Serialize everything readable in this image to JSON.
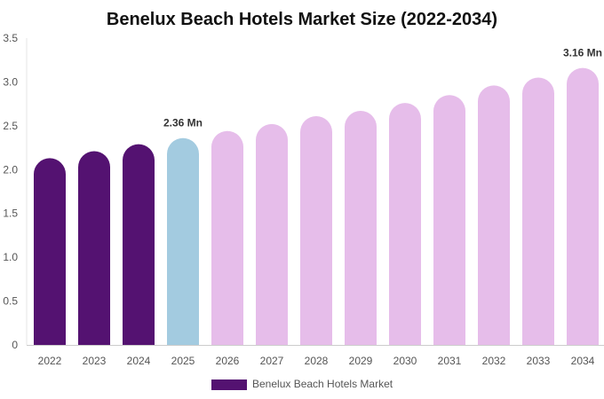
{
  "chart_data": {
    "type": "bar",
    "title": "Benelux Beach Hotels Market Size (2022-2034)",
    "xlabel": "",
    "ylabel": "",
    "categories": [
      "2022",
      "2023",
      "2024",
      "2025",
      "2026",
      "2027",
      "2028",
      "2029",
      "2030",
      "2031",
      "2032",
      "2033",
      "2034"
    ],
    "series": [
      {
        "name": "Benelux Beach Hotels Market",
        "values": [
          2.13,
          2.21,
          2.29,
          2.36,
          2.44,
          2.52,
          2.61,
          2.67,
          2.76,
          2.85,
          2.96,
          3.05,
          3.16
        ]
      }
    ],
    "ylim": [
      0,
      3.5
    ],
    "yticks": [
      {
        "value": 0,
        "label": "0"
      },
      {
        "value": 0.5,
        "label": "0.5"
      },
      {
        "value": 1.0,
        "label": "1.0"
      },
      {
        "value": 1.5,
        "label": "1.5"
      },
      {
        "value": 2.0,
        "label": "2.0"
      },
      {
        "value": 2.5,
        "label": "2.5"
      },
      {
        "value": 3.0,
        "label": "3.0"
      },
      {
        "value": 3.5,
        "label": "3.5"
      }
    ],
    "data_labels": [
      {
        "index": 3,
        "text": "2.36 Mn"
      },
      {
        "index": 12,
        "text": "3.16 Mn"
      }
    ],
    "colors": {
      "historical": "#541271",
      "current": "#a3cbe0",
      "forecast": "#e6bdea"
    },
    "color_groups": [
      "historical",
      "historical",
      "historical",
      "current",
      "forecast",
      "forecast",
      "forecast",
      "forecast",
      "forecast",
      "forecast",
      "forecast",
      "forecast",
      "forecast"
    ],
    "grid": false,
    "legend": {
      "position": "bottom-center",
      "label": "Benelux Beach Hotels Market",
      "color": "#541271"
    }
  }
}
